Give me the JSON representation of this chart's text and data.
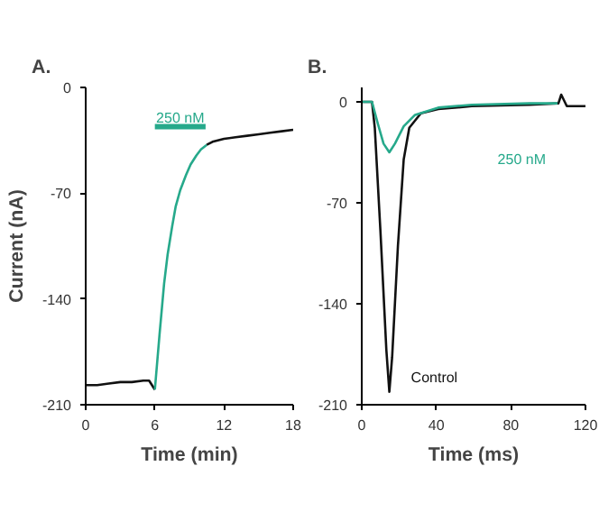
{
  "chart_data": [
    {
      "type": "line",
      "title": "A.",
      "xlabel": "Time (min)",
      "ylabel": "Current (nA)",
      "xlim": [
        0,
        18
      ],
      "xticks": [
        0,
        6,
        12,
        18
      ],
      "ylim": [
        -210,
        0
      ],
      "yticks": [
        0,
        -70,
        -140,
        -210
      ],
      "grid": false,
      "marker": "none",
      "line_style": "solid",
      "series": [
        {
          "color": "#111111",
          "x": [
            0,
            1,
            2,
            3,
            4,
            5,
            5.5,
            6
          ],
          "values": [
            -197,
            -197,
            -196,
            -195,
            -195,
            -194,
            -194,
            -200
          ]
        },
        {
          "color": "#26a98b",
          "x": [
            6,
            6.4,
            6.8,
            7.1,
            7.5,
            7.8,
            8.2,
            8.7,
            9.1,
            9.6,
            10,
            10.5
          ],
          "values": [
            -200,
            -164,
            -130,
            -111,
            -92,
            -79,
            -68,
            -58,
            -51,
            -45,
            -41,
            -38
          ]
        },
        {
          "color": "#111111",
          "x": [
            10.5,
            11,
            12,
            13,
            14,
            15,
            16,
            17,
            18
          ],
          "values": [
            -38,
            -36,
            -34,
            -33,
            -32,
            -31,
            -30,
            -29,
            -28
          ]
        },
        {
          "name": "250 nM",
          "color": "#26a98b",
          "x": [
            6,
            10.4
          ],
          "values": [
            -26,
            -26
          ]
        }
      ]
    },
    {
      "type": "line",
      "title": "B.",
      "xlabel": "Time (ms)",
      "xlim": [
        0,
        120
      ],
      "xticks": [
        0,
        40,
        80,
        120
      ],
      "ylim": [
        -210,
        10
      ],
      "yticks": [
        0,
        -70,
        -140,
        -210
      ],
      "grid": false,
      "marker": "none",
      "line_style": "solid",
      "series": [
        {
          "name": "Control",
          "color": "#111111",
          "x": [
            0,
            5.5,
            7,
            10,
            13.2,
            14.8,
            16.3,
            19.4,
            22.5,
            25.5,
            31.7,
            41,
            59,
            90,
            105.5,
            107,
            110,
            120
          ],
          "values": [
            0,
            0,
            -18,
            -89,
            -172,
            -201,
            -177,
            -100,
            -40,
            -18,
            -8,
            -5,
            -3,
            -2,
            -1,
            5,
            -3,
            -3
          ]
        },
        {
          "name": "250 nM",
          "color": "#26a98b",
          "x": [
            0,
            5.5,
            8.6,
            11.7,
            14.8,
            17.8,
            22.5,
            28.6,
            41,
            59,
            90,
            105
          ],
          "values": [
            0,
            0,
            -15,
            -29,
            -35,
            -29,
            -17,
            -9,
            -4,
            -2,
            -1,
            -1
          ]
        }
      ]
    }
  ]
}
